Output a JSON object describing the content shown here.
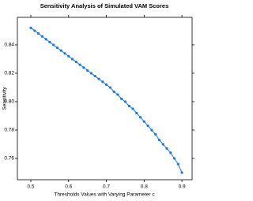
{
  "chart_data": {
    "type": "line",
    "title": "Sensitivity Analysis of Simulated VAM Scores",
    "xlabel": "Thresholds Values with Varying Parameter c",
    "ylabel": "Sensitivity",
    "x": [
      0.5,
      0.51,
      0.52,
      0.53,
      0.54,
      0.55,
      0.56,
      0.57,
      0.58,
      0.59,
      0.6,
      0.61,
      0.62,
      0.63,
      0.64,
      0.65,
      0.66,
      0.67,
      0.68,
      0.69,
      0.7,
      0.71,
      0.72,
      0.73,
      0.74,
      0.75,
      0.76,
      0.77,
      0.78,
      0.79,
      0.8,
      0.81,
      0.82,
      0.83,
      0.84,
      0.85,
      0.86,
      0.87,
      0.88,
      0.89,
      0.9
    ],
    "series": [
      {
        "color": "#1f78d8",
        "values": [
          0.852,
          0.85,
          0.848,
          0.846,
          0.844,
          0.842,
          0.84,
          0.838,
          0.836,
          0.834,
          0.832,
          0.83,
          0.828,
          0.826,
          0.824,
          0.822,
          0.82,
          0.818,
          0.816,
          0.814,
          0.812,
          0.81,
          0.807,
          0.805,
          0.802,
          0.8,
          0.797,
          0.795,
          0.792,
          0.789,
          0.786,
          0.783,
          0.78,
          0.777,
          0.773,
          0.77,
          0.767,
          0.764,
          0.76,
          0.756,
          0.75
        ]
      }
    ],
    "xlim": [
      0.4644,
      0.927
    ],
    "ylim": [
      0.745,
      0.8594
    ],
    "xticks": [
      0.5,
      0.6,
      0.7,
      0.8,
      0.9
    ],
    "yticks": [
      0.76,
      {
        "value": 0.78,
        "label": "0.78"
      },
      {
        "value": 0.8,
        "label": "0.80"
      },
      {
        "value": 0.82,
        "label": "0.82"
      },
      {
        "value": 0.84,
        "label": "0.84"
      }
    ]
  }
}
